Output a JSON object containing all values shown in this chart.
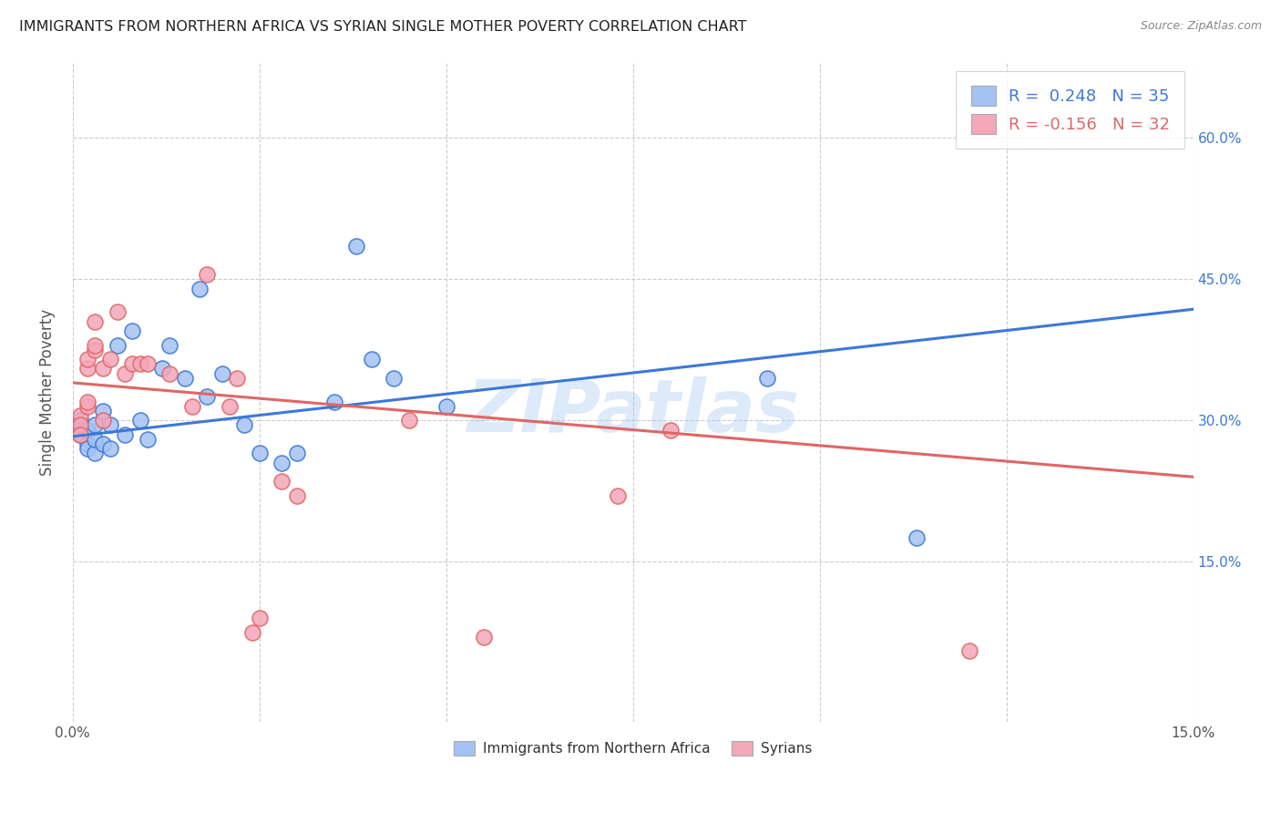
{
  "title": "IMMIGRANTS FROM NORTHERN AFRICA VS SYRIAN SINGLE MOTHER POVERTY CORRELATION CHART",
  "source": "Source: ZipAtlas.com",
  "ylabel": "Single Mother Poverty",
  "xlim": [
    0.0,
    0.15
  ],
  "ylim": [
    -0.02,
    0.68
  ],
  "legend_label_blue": "Immigrants from Northern Africa",
  "legend_label_pink": "Syrians",
  "R_blue": 0.248,
  "N_blue": 35,
  "R_pink": -0.156,
  "N_pink": 32,
  "blue_color": "#a4c2f4",
  "pink_color": "#f4a7b9",
  "blue_line_color": "#3c78d8",
  "pink_line_color": "#e06666",
  "watermark": "ZIPatlas",
  "blue_scatter": [
    [
      0.001,
      0.285
    ],
    [
      0.001,
      0.295
    ],
    [
      0.001,
      0.3
    ],
    [
      0.002,
      0.275
    ],
    [
      0.002,
      0.27
    ],
    [
      0.002,
      0.29
    ],
    [
      0.003,
      0.265
    ],
    [
      0.003,
      0.28
    ],
    [
      0.003,
      0.295
    ],
    [
      0.004,
      0.275
    ],
    [
      0.004,
      0.31
    ],
    [
      0.005,
      0.295
    ],
    [
      0.005,
      0.27
    ],
    [
      0.006,
      0.38
    ],
    [
      0.007,
      0.285
    ],
    [
      0.008,
      0.395
    ],
    [
      0.009,
      0.3
    ],
    [
      0.01,
      0.28
    ],
    [
      0.012,
      0.355
    ],
    [
      0.013,
      0.38
    ],
    [
      0.015,
      0.345
    ],
    [
      0.017,
      0.44
    ],
    [
      0.018,
      0.325
    ],
    [
      0.02,
      0.35
    ],
    [
      0.023,
      0.295
    ],
    [
      0.025,
      0.265
    ],
    [
      0.028,
      0.255
    ],
    [
      0.03,
      0.265
    ],
    [
      0.035,
      0.32
    ],
    [
      0.038,
      0.485
    ],
    [
      0.04,
      0.365
    ],
    [
      0.043,
      0.345
    ],
    [
      0.05,
      0.315
    ],
    [
      0.093,
      0.345
    ],
    [
      0.113,
      0.175
    ]
  ],
  "pink_scatter": [
    [
      0.001,
      0.305
    ],
    [
      0.001,
      0.295
    ],
    [
      0.001,
      0.285
    ],
    [
      0.002,
      0.315
    ],
    [
      0.002,
      0.32
    ],
    [
      0.002,
      0.355
    ],
    [
      0.002,
      0.365
    ],
    [
      0.003,
      0.405
    ],
    [
      0.003,
      0.375
    ],
    [
      0.003,
      0.38
    ],
    [
      0.004,
      0.3
    ],
    [
      0.004,
      0.355
    ],
    [
      0.005,
      0.365
    ],
    [
      0.006,
      0.415
    ],
    [
      0.007,
      0.35
    ],
    [
      0.008,
      0.36
    ],
    [
      0.009,
      0.36
    ],
    [
      0.01,
      0.36
    ],
    [
      0.013,
      0.35
    ],
    [
      0.016,
      0.315
    ],
    [
      0.018,
      0.455
    ],
    [
      0.021,
      0.315
    ],
    [
      0.022,
      0.345
    ],
    [
      0.024,
      0.075
    ],
    [
      0.025,
      0.09
    ],
    [
      0.028,
      0.235
    ],
    [
      0.03,
      0.22
    ],
    [
      0.045,
      0.3
    ],
    [
      0.055,
      0.07
    ],
    [
      0.073,
      0.22
    ],
    [
      0.08,
      0.29
    ],
    [
      0.12,
      0.055
    ]
  ]
}
